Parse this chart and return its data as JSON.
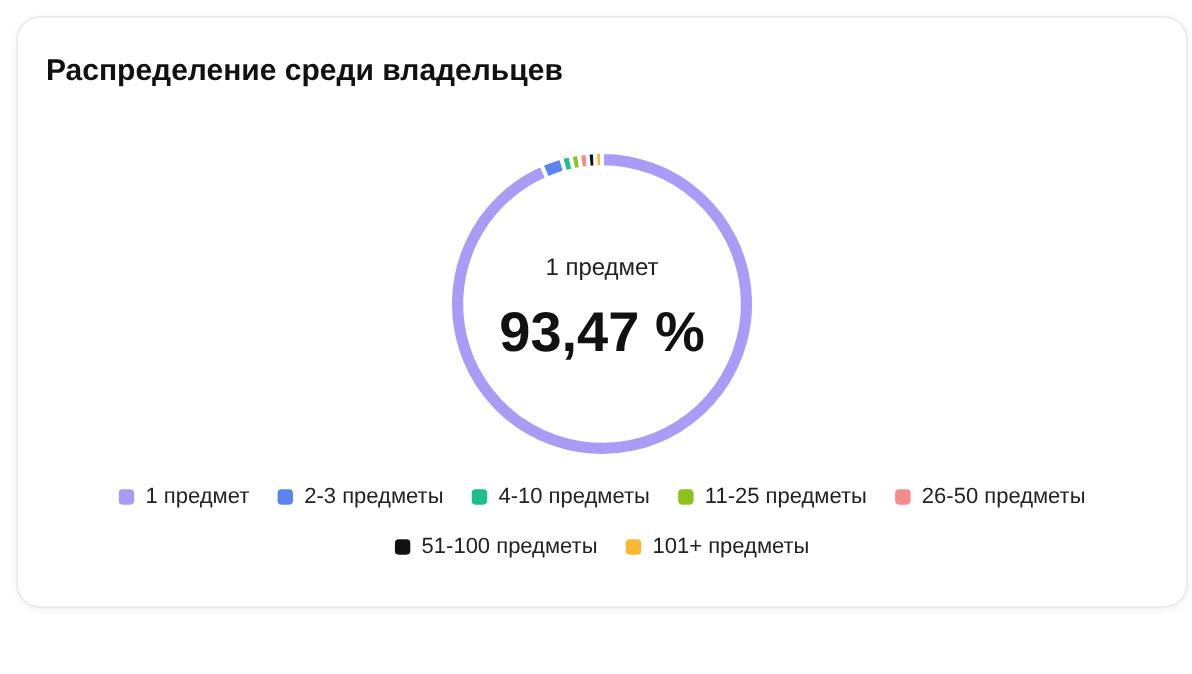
{
  "chart_data": {
    "type": "donut",
    "title": "Распределение среди владельцев",
    "categories": [
      "1 предмет",
      "2-3 предметы",
      "4-10 предметы",
      "11-25 предметы",
      "26-50 предметы",
      "51-100 предметы",
      "101+ предметы"
    ],
    "values": [
      93.47,
      2.2,
      1.0,
      0.9,
      0.9,
      0.8,
      0.73
    ],
    "colors": [
      "#a99cf7",
      "#5b84f0",
      "#1dbf8a",
      "#8cc220",
      "#f78a8a",
      "#111111",
      "#fbb933"
    ],
    "value_labels": [
      "93,47 %",
      null,
      null,
      null,
      null,
      null,
      null
    ],
    "legend": "bottom"
  }
}
